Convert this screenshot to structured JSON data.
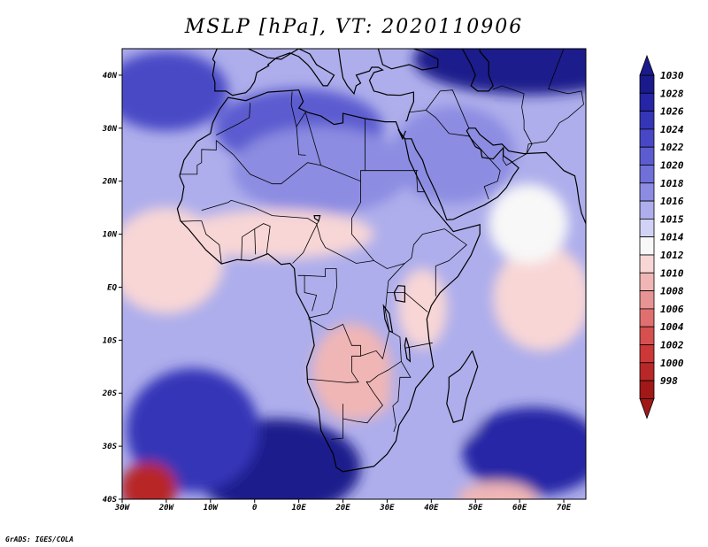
{
  "title": "MSLP [hPa], VT: 2020110906",
  "credit": "GrADS: IGES/COLA",
  "map": {
    "lon_range": [
      -30,
      75
    ],
    "lat_range": [
      -40,
      45
    ],
    "lat_labels": [
      {
        "lat": 40,
        "text": "40N"
      },
      {
        "lat": 30,
        "text": "30N"
      },
      {
        "lat": 20,
        "text": "20N"
      },
      {
        "lat": 10,
        "text": "10N"
      },
      {
        "lat": 0,
        "text": "EQ"
      },
      {
        "lat": -10,
        "text": "10S"
      },
      {
        "lat": -20,
        "text": "20S"
      },
      {
        "lat": -30,
        "text": "30S"
      },
      {
        "lat": -40,
        "text": "40S"
      }
    ],
    "lon_labels": [
      {
        "lon": -30,
        "text": "30W"
      },
      {
        "lon": -20,
        "text": "20W"
      },
      {
        "lon": -10,
        "text": "10W"
      },
      {
        "lon": 0,
        "text": "0"
      },
      {
        "lon": 10,
        "text": "10E"
      },
      {
        "lon": 20,
        "text": "20E"
      },
      {
        "lon": 30,
        "text": "30E"
      },
      {
        "lon": 40,
        "text": "40E"
      },
      {
        "lon": 50,
        "text": "50E"
      },
      {
        "lon": 60,
        "text": "60E"
      },
      {
        "lon": 70,
        "text": "70E"
      }
    ],
    "pressure_features": [
      {
        "name": "azores-high",
        "lon": -20,
        "lat": 37,
        "level": 1024
      },
      {
        "name": "north-africa-high",
        "lon": 10,
        "lat": 30,
        "level": 1022
      },
      {
        "name": "sahara-high",
        "lon": 15,
        "lat": 22,
        "level": 1018
      },
      {
        "name": "eurasia-high",
        "lon": 62,
        "lat": 43,
        "level": 1030
      },
      {
        "name": "arabia-high",
        "lon": 45,
        "lat": 25,
        "level": 1018
      },
      {
        "name": "st-helena-high",
        "lon": 5,
        "lat": -34,
        "level": 1030
      },
      {
        "name": "south-atlantic-high",
        "lon": -14,
        "lat": -27,
        "level": 1026
      },
      {
        "name": "mascarene-high",
        "lon": 63,
        "lat": -31,
        "level": 1028
      },
      {
        "name": "sw-atlantic-low",
        "lon": -24,
        "lat": -38,
        "level": 1000
      },
      {
        "name": "angola-zambia-low",
        "lon": 22,
        "lat": -16,
        "level": 1010
      },
      {
        "name": "kalahari-low",
        "lon": 24,
        "lat": -20,
        "level": 1010
      },
      {
        "name": "kenya-low",
        "lon": 38,
        "lat": -4,
        "level": 1012
      },
      {
        "name": "sahel-trough",
        "lon": 5,
        "lat": 10,
        "level": 1012
      },
      {
        "name": "tropical-atlantic",
        "lon": -20,
        "lat": 5,
        "level": 1012
      },
      {
        "name": "equatorial-indian",
        "lon": 65,
        "lat": -2,
        "level": 1012
      },
      {
        "name": "arabian-sea",
        "lon": 62,
        "lat": 12,
        "level": 1014
      },
      {
        "name": "mozambique-channel",
        "lon": 44,
        "lat": -22,
        "level": 1016
      },
      {
        "name": "south-indian-low",
        "lon": 55,
        "lat": -40,
        "level": 1010
      }
    ]
  },
  "colorbar": {
    "levels": [
      "1030",
      "1028",
      "1026",
      "1024",
      "1022",
      "1020",
      "1018",
      "1016",
      "1015",
      "1014",
      "1012",
      "1010",
      "1008",
      "1006",
      "1004",
      "1002",
      "1000",
      "998"
    ],
    "colors": {
      "1030": "#1a1a8c",
      "1028": "#2525a6",
      "1026": "#3535b8",
      "1024": "#4848c6",
      "1022": "#5c5cd0",
      "1020": "#7070d8",
      "1018": "#8c8ce2",
      "1016": "#aeaeec",
      "1015": "#d2d2f6",
      "1014": "#f8f8f8",
      "1012": "#f8d6d6",
      "1010": "#f0b6b6",
      "1008": "#e89494",
      "1006": "#e07070",
      "1004": "#d65050",
      "1002": "#cc3838",
      "1000": "#b82828",
      "998": "#a01818"
    }
  }
}
